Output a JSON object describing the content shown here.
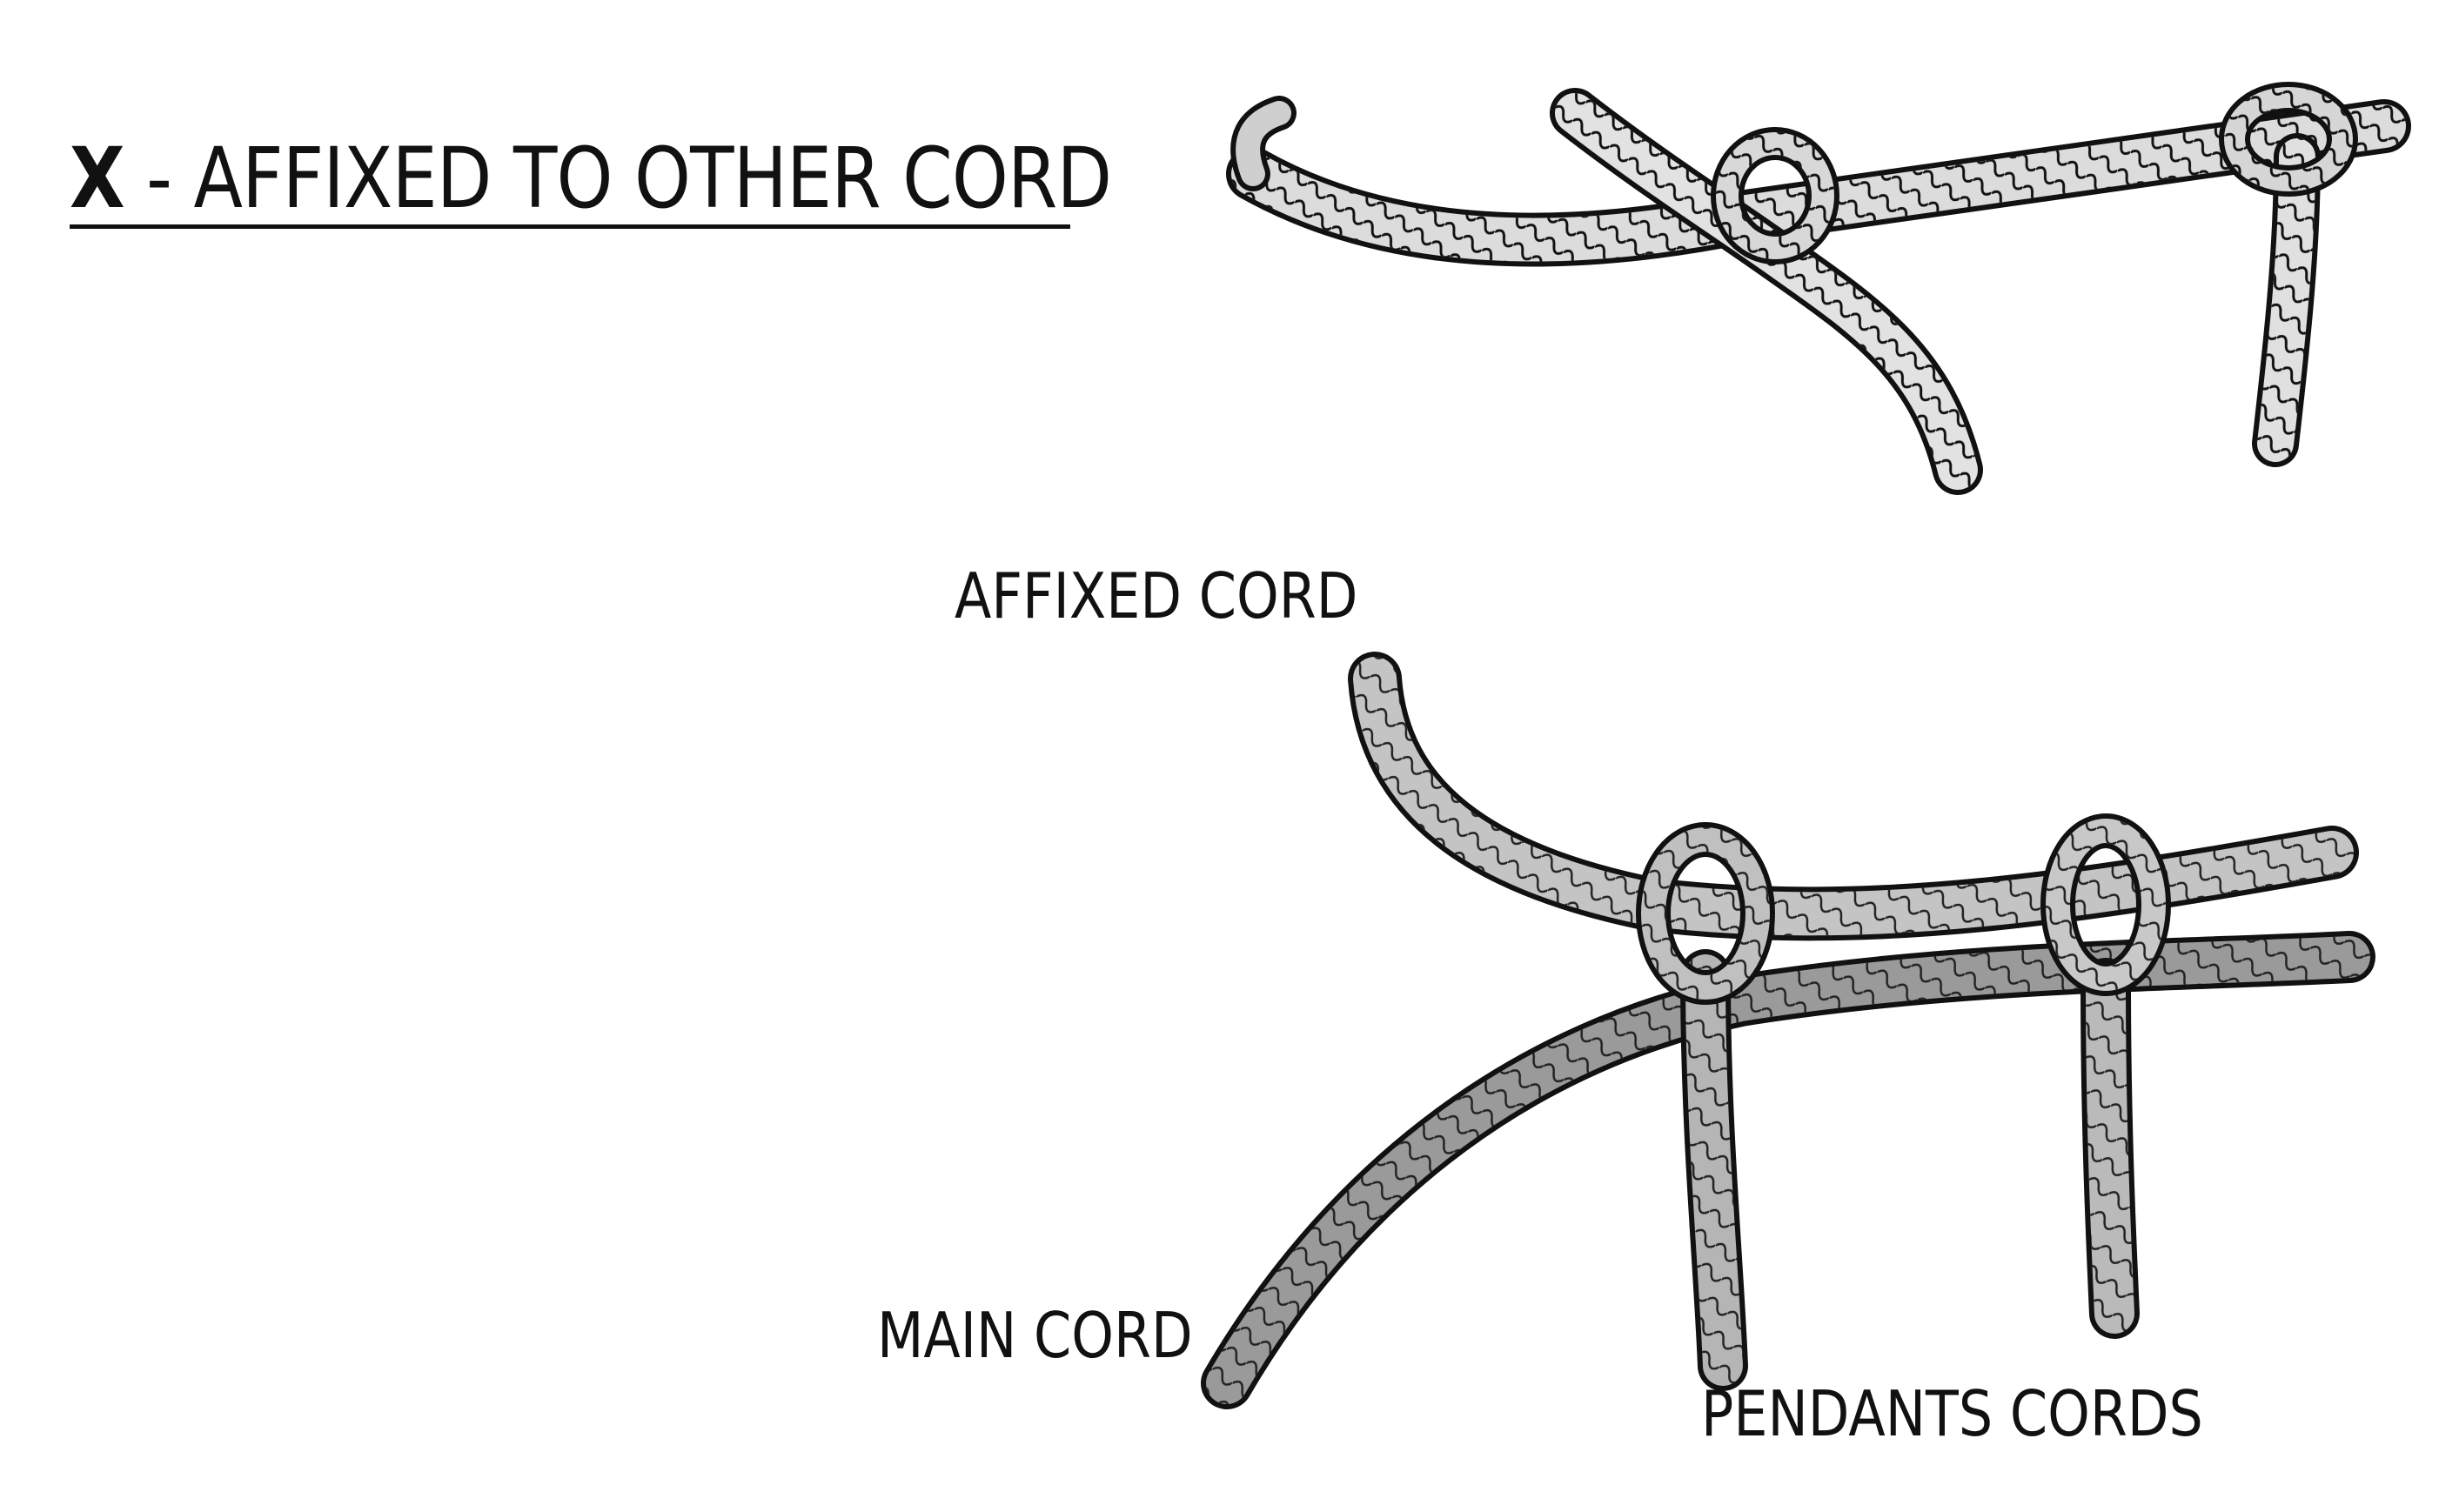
{
  "title": {
    "code": "X",
    "separator": " - ",
    "text": "AFFIXED TO OTHER CORD"
  },
  "labels": {
    "affixed_cord": "AFFIXED CORD",
    "main_cord": "MAIN CORD",
    "pendant_cords": "PENDANTS CORDS"
  },
  "colors": {
    "ink": "#111111",
    "cord_light": "#e6e6e6",
    "cord_mid": "#b3b3b3",
    "cord_dark": "#8a8a8a",
    "background": "#ffffff"
  }
}
